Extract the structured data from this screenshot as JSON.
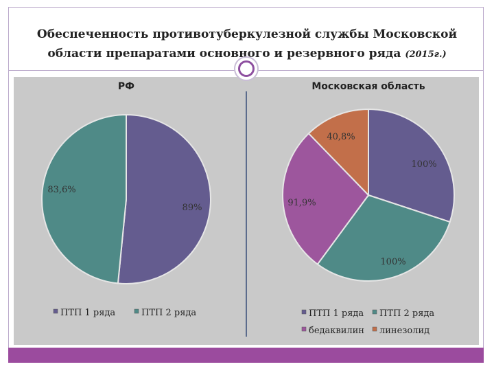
{
  "slide": {
    "title_line1": "Обеспеченность противотуберкулезной службы Московской",
    "title_line2": "области препаратами основного и резервного ряда",
    "title_year": "(2015г.)"
  },
  "colors": {
    "ptp1": "#645c8f",
    "ptp2": "#4f8a87",
    "bedaquiline": "#9d569d",
    "linezolid": "#c26f4a",
    "accent_bar": "#9b4b9e"
  },
  "chart_data": [
    {
      "type": "pie",
      "title": "РФ",
      "categories": [
        "ПТП 1 ряда",
        "ПТП 2 ряда"
      ],
      "values": [
        89,
        83.6
      ],
      "labels": [
        "89%",
        "83,6%"
      ],
      "legend": "bottom"
    },
    {
      "type": "pie",
      "title": "Московская область",
      "categories": [
        "ПТП 1 ряда",
        "ПТП 2 ряда",
        "бедаквилин",
        "линезолид"
      ],
      "values": [
        100,
        100,
        91.9,
        40.8
      ],
      "labels": [
        "100%",
        "100%",
        "91,9%",
        "40,8%"
      ],
      "legend": "bottom"
    }
  ]
}
